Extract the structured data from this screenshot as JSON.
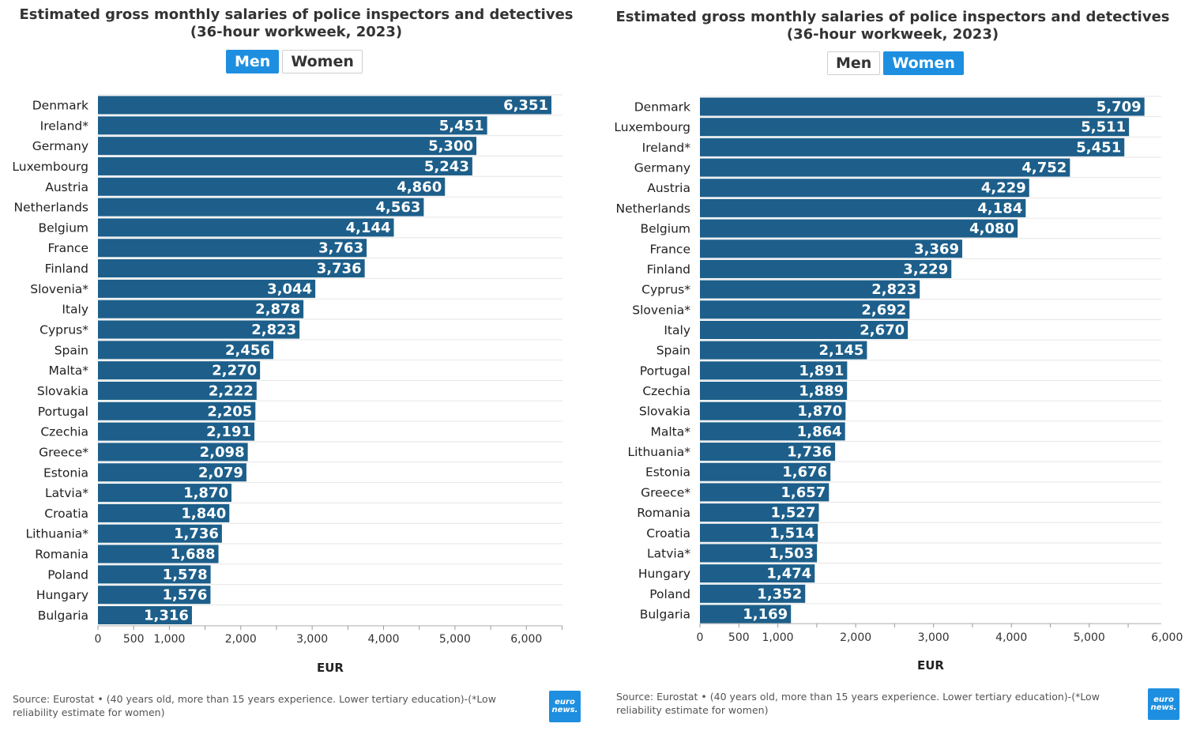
{
  "colors": {
    "bar": "#1d5f8a",
    "active_button": "#1e8fe0",
    "grid": "#e6e6e6"
  },
  "charts": [
    {
      "title": "Estimated gross monthly salaries of police inspectors and detectives (36-hour workweek, 2023)",
      "toggle": {
        "men": "Men",
        "women": "Women",
        "active": "men"
      },
      "source": "Source: Eurostat • (40 years old, more than 15 years experience. Lower tertiary education)-(*Low reliability estimate for women)",
      "logo": [
        "euro",
        "news."
      ]
    },
    {
      "title": "Estimated gross monthly salaries of police inspectors and detectives (36-hour workweek, 2023)",
      "toggle": {
        "men": "Men",
        "women": "Women",
        "active": "women"
      },
      "source": "Source: Eurostat • (40 years old, more than 15 years experience. Lower tertiary education)-(*Low reliability estimate for women)",
      "logo": [
        "euro",
        "news."
      ]
    }
  ],
  "chart_data": [
    {
      "type": "bar",
      "orientation": "horizontal",
      "title": "Estimated gross monthly salaries of police inspectors and detectives (36-hour workweek, 2023)",
      "series": [
        {
          "name": "Men"
        }
      ],
      "xlabel": "EUR",
      "xlim": [
        0,
        6500
      ],
      "ticks": [
        0,
        500,
        1000,
        2000,
        3000,
        4000,
        5000,
        6000
      ],
      "tick_labels": [
        "0",
        "500",
        "1,000",
        "2,000",
        "3,000",
        "4,000",
        "5,000",
        "6,000"
      ],
      "categories": [
        "Denmark",
        "Ireland*",
        "Germany",
        "Luxembourg",
        "Austria",
        "Netherlands",
        "Belgium",
        "France",
        "Finland",
        "Slovenia*",
        "Italy",
        "Cyprus*",
        "Spain",
        "Malta*",
        "Slovakia",
        "Portugal",
        "Czechia",
        "Greece*",
        "Estonia",
        "Latvia*",
        "Croatia",
        "Lithuania*",
        "Romania",
        "Poland",
        "Hungary",
        "Bulgaria"
      ],
      "values": [
        6351,
        5451,
        5300,
        5243,
        4860,
        4563,
        4144,
        3763,
        3736,
        3044,
        2878,
        2823,
        2456,
        2270,
        2222,
        2205,
        2191,
        2098,
        2079,
        1870,
        1840,
        1736,
        1688,
        1578,
        1576,
        1316
      ],
      "value_labels": [
        "6,351",
        "5,451",
        "5,300",
        "5,243",
        "4,860",
        "4,563",
        "4,144",
        "3,763",
        "3,736",
        "3,044",
        "2,878",
        "2,823",
        "2,456",
        "2,270",
        "2,222",
        "2,205",
        "2,191",
        "2,098",
        "2,079",
        "1,870",
        "1,840",
        "1,736",
        "1,688",
        "1,578",
        "1,576",
        "1,316"
      ]
    },
    {
      "type": "bar",
      "orientation": "horizontal",
      "title": "Estimated gross monthly salaries of police inspectors and detectives (36-hour workweek, 2023)",
      "series": [
        {
          "name": "Women"
        }
      ],
      "xlabel": "EUR",
      "xlim": [
        0,
        6000
      ],
      "ticks": [
        0,
        500,
        1000,
        2000,
        3000,
        4000,
        5000,
        6000
      ],
      "tick_labels": [
        "0",
        "500",
        "1,000",
        "2,000",
        "3,000",
        "4,000",
        "5,000",
        "6,000"
      ],
      "categories": [
        "Denmark",
        "Luxembourg",
        "Ireland*",
        "Germany",
        "Austria",
        "Netherlands",
        "Belgium",
        "France",
        "Finland",
        "Cyprus*",
        "Slovenia*",
        "Italy",
        "Spain",
        "Portugal",
        "Czechia",
        "Slovakia",
        "Malta*",
        "Lithuania*",
        "Estonia",
        "Greece*",
        "Romania",
        "Croatia",
        "Latvia*",
        "Hungary",
        "Poland",
        "Bulgaria"
      ],
      "values": [
        5709,
        5511,
        5451,
        4752,
        4229,
        4184,
        4080,
        3369,
        3229,
        2823,
        2692,
        2670,
        2145,
        1891,
        1889,
        1870,
        1864,
        1736,
        1676,
        1657,
        1527,
        1514,
        1503,
        1474,
        1352,
        1169
      ],
      "value_labels": [
        "5,709",
        "5,511",
        "5,451",
        "4,752",
        "4,229",
        "4,184",
        "4,080",
        "3,369",
        "3,229",
        "2,823",
        "2,692",
        "2,670",
        "2,145",
        "1,891",
        "1,889",
        "1,870",
        "1,864",
        "1,736",
        "1,676",
        "1,657",
        "1,527",
        "1,514",
        "1,503",
        "1,474",
        "1,352",
        "1,169"
      ]
    }
  ]
}
